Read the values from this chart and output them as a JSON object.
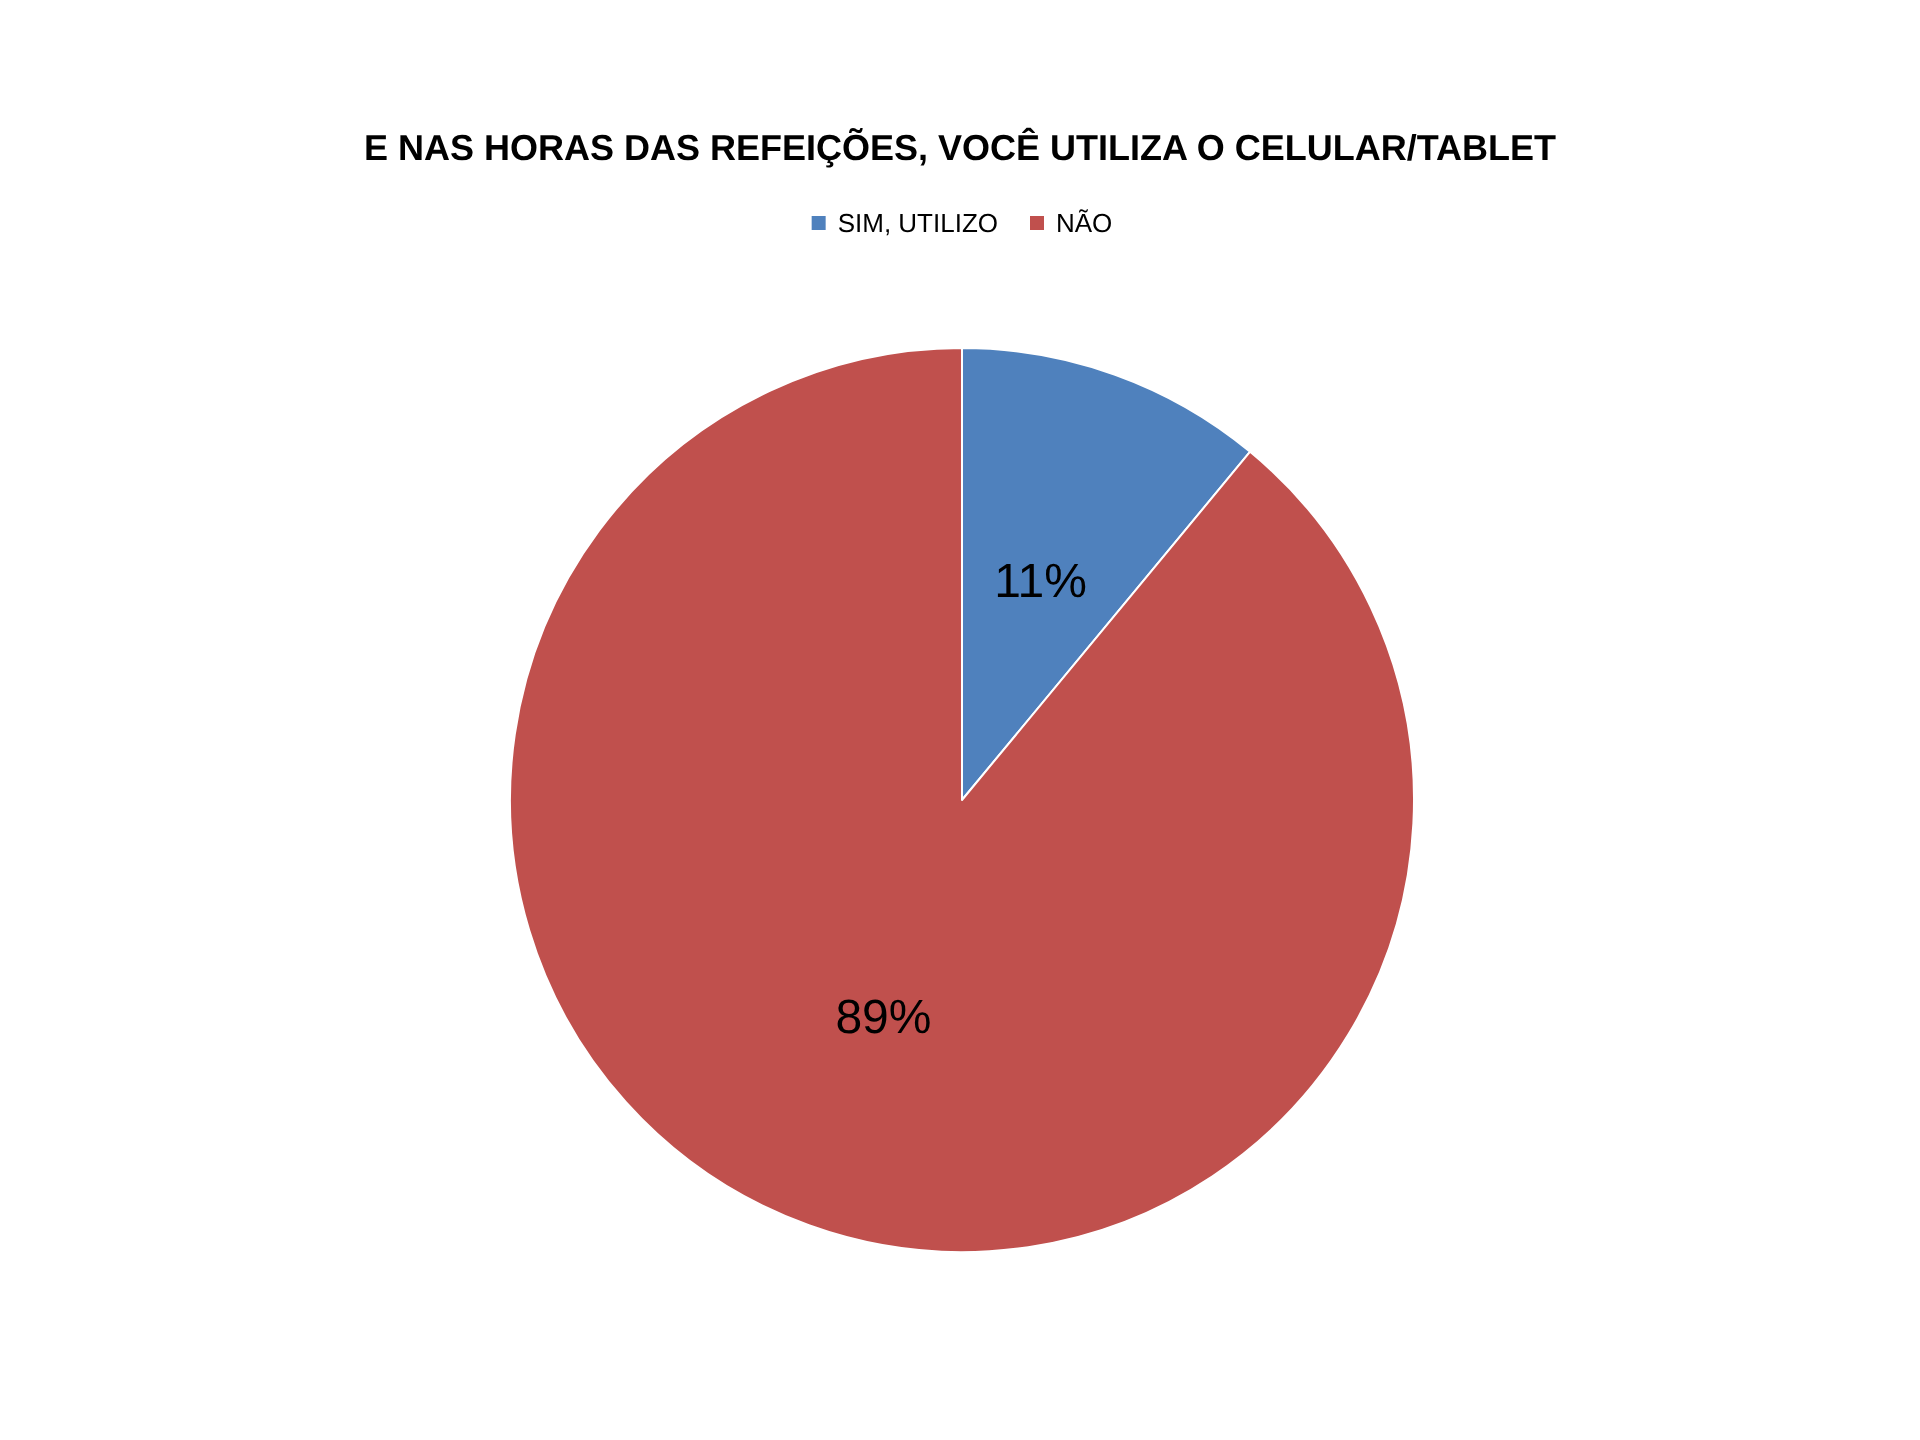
{
  "chart_data": {
    "type": "pie",
    "title": "E NAS HORAS DAS REFEIÇÕES, VOCÊ UTILIZA O CELULAR/TABLET",
    "categories": [
      "SIM, UTILIZO",
      "NÃO"
    ],
    "values": [
      11,
      89
    ],
    "colors": [
      "#4f81bd",
      "#c0504d"
    ],
    "value_labels": [
      "11%",
      "89%"
    ],
    "legend": "top"
  }
}
